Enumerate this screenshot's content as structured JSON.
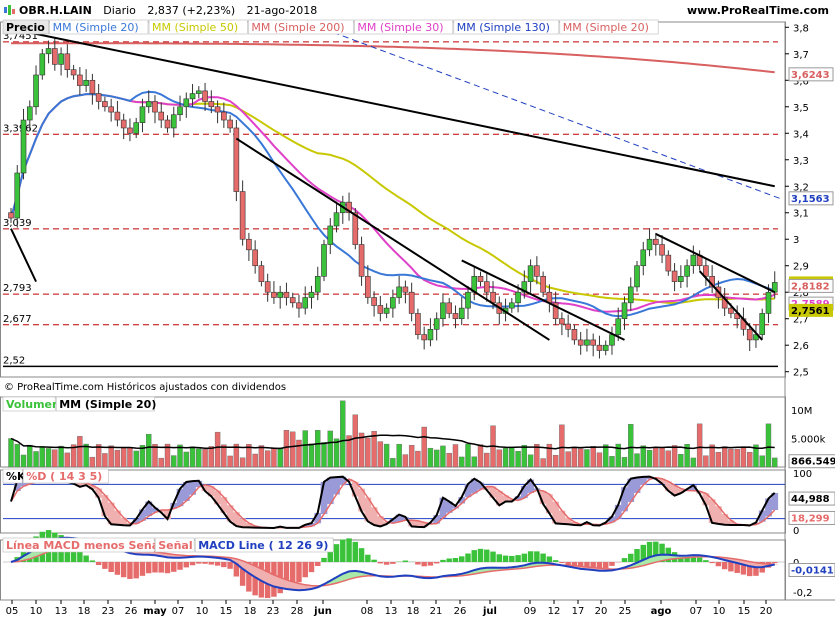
{
  "header": {
    "ticker": "OBR.H.LAIN",
    "period": "Diario",
    "price": "2,837 (+2,23%)",
    "date": "21-ago-2018",
    "site": "www.ProRealTime.com"
  },
  "colors": {
    "up": "#3ac23a",
    "down": "#e66b6b",
    "mm20": "#3a78d8",
    "mm50": "#c8c800",
    "mm200": "#d86060",
    "mm30": "#e040c8",
    "mm130": "#2040c0",
    "trend": "#000000",
    "dashed": "#c00000"
  },
  "chart_data": [
    {
      "type": "candlestick",
      "panel": "price",
      "legend": [
        "Precio",
        "MM (Simple 20)",
        "MM (Simple 50)",
        "MM (Simple 200)",
        "MM (Simple 30)",
        "MM (Simple 130)",
        "MM (Simple 20)"
      ],
      "ylim": [
        2.48,
        3.82
      ],
      "y_ticks": [
        "3,8",
        "3,7",
        "3,6",
        "3,5",
        "3,4",
        "3,3",
        "3,2",
        "3,1",
        "3",
        "2,9",
        "2,8",
        "2,7",
        "2,6",
        "2,5"
      ],
      "level_labels": [
        "3,7451",
        "3,3962",
        "3,039",
        "2,793",
        "2,677",
        "2,52"
      ],
      "levels": [
        3.7451,
        3.3962,
        3.039,
        2.793,
        2.677,
        2.52
      ],
      "last_value_labels": [
        "3,6243",
        "3,1563",
        "2,837",
        "2,8182",
        "2,7589",
        "2,7561"
      ],
      "footer": "© ProRealTime.com Históricos ajustados con dividendos",
      "closes": [
        3.08,
        3.25,
        3.45,
        3.5,
        3.62,
        3.7,
        3.72,
        3.66,
        3.7,
        3.64,
        3.62,
        3.58,
        3.6,
        3.55,
        3.52,
        3.5,
        3.48,
        3.45,
        3.42,
        3.4,
        3.44,
        3.5,
        3.52,
        3.48,
        3.45,
        3.42,
        3.47,
        3.5,
        3.53,
        3.55,
        3.56,
        3.52,
        3.5,
        3.48,
        3.45,
        3.42,
        3.18,
        3.0,
        2.96,
        2.9,
        2.84,
        2.8,
        2.78,
        2.8,
        2.78,
        2.76,
        2.74,
        2.78,
        2.8,
        2.86,
        2.98,
        3.05,
        3.1,
        3.14,
        3.1,
        2.98,
        2.86,
        2.78,
        2.75,
        2.72,
        2.74,
        2.78,
        2.82,
        2.8,
        2.72,
        2.64,
        2.62,
        2.66,
        2.7,
        2.76,
        2.72,
        2.7,
        2.74,
        2.8,
        2.86,
        2.84,
        2.8,
        2.76,
        2.72,
        2.74,
        2.76,
        2.8,
        2.84,
        2.9,
        2.86,
        2.8,
        2.76,
        2.7,
        2.68,
        2.66,
        2.62,
        2.6,
        2.62,
        2.6,
        2.58,
        2.6,
        2.64,
        2.7,
        2.76,
        2.82,
        2.9,
        2.96,
        3.0,
        2.98,
        2.94,
        2.88,
        2.84,
        2.86,
        2.9,
        2.94,
        2.9,
        2.86,
        2.82,
        2.78,
        2.74,
        2.72,
        2.7,
        2.66,
        2.62,
        2.64,
        2.72,
        2.8,
        2.837
      ],
      "x_tick_labels": [
        "05",
        "10",
        "13",
        "18",
        "23",
        "26",
        "may",
        "07",
        "10",
        "15",
        "18",
        "23",
        "28",
        "jun",
        "08",
        "13",
        "18",
        "21",
        "26",
        "jul",
        "09",
        "12",
        "17",
        "20",
        "25",
        "ago",
        "07",
        "10",
        "15",
        "20"
      ]
    },
    {
      "type": "bar",
      "panel": "volume",
      "legend": [
        "Volumen",
        "MM (Simple 20)"
      ],
      "y_ticks": [
        "10M",
        "5.000k"
      ],
      "last_value_labels": [
        "866.549"
      ]
    },
    {
      "type": "line",
      "panel": "stochastic",
      "legend": [
        "%K",
        "%D ( 14 3 5)"
      ],
      "y_ticks": [
        "100",
        "0"
      ],
      "last_value_labels": [
        "44,988",
        "18,299"
      ]
    },
    {
      "type": "line",
      "panel": "macd",
      "legend": [
        "Línea MACD menos Señal",
        "Señal",
        "MACD Line ( 12 26 9)"
      ],
      "y_ticks": [
        "0",
        "-0,2"
      ],
      "last_value_labels": [
        "-0,0141"
      ]
    }
  ]
}
